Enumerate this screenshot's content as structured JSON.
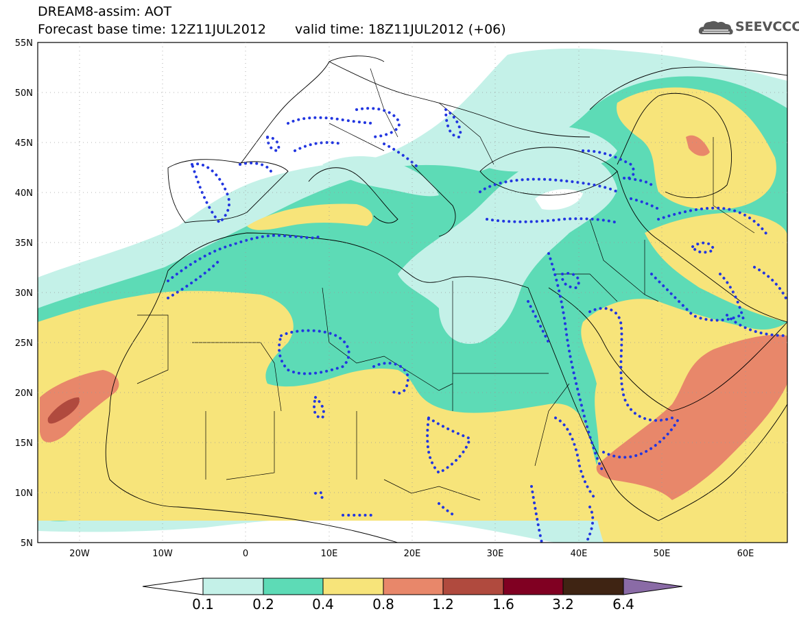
{
  "header": {
    "line1": "DREAM8-assim: AOT",
    "base_time": "Forecast base time: 12Z11JUL2012",
    "valid_time": "valid time: 18Z11JUL2012 (+06)",
    "logo": "SEEVCCC"
  },
  "axes": {
    "lat_labels": [
      "55N",
      "50N",
      "45N",
      "40N",
      "35N",
      "30N",
      "25N",
      "20N",
      "15N",
      "10N",
      "5N"
    ],
    "lon_labels": [
      "20W",
      "10W",
      "0",
      "10E",
      "20E",
      "30E",
      "40E",
      "50E",
      "60E"
    ],
    "lon_range": [
      -25,
      65
    ],
    "lat_range": [
      5,
      55
    ]
  },
  "colorbar": {
    "labels": [
      "0.1",
      "0.2",
      "0.4",
      "0.8",
      "1.2",
      "1.6",
      "3.2",
      "6.4"
    ],
    "colors": [
      "#ffffff",
      "#c4f1e8",
      "#5ddbb6",
      "#f7e47a",
      "#e8876a",
      "#b04a3e",
      "#800022",
      "#3f2413",
      "#8a6ba6"
    ]
  },
  "field_colors": {
    "c01": "#c4f1e8",
    "c02": "#5ddbb6",
    "c04": "#f7e47a",
    "c08": "#e8876a",
    "c12": "#b04a3e",
    "obs": "#2236e0",
    "border": "#000000"
  }
}
